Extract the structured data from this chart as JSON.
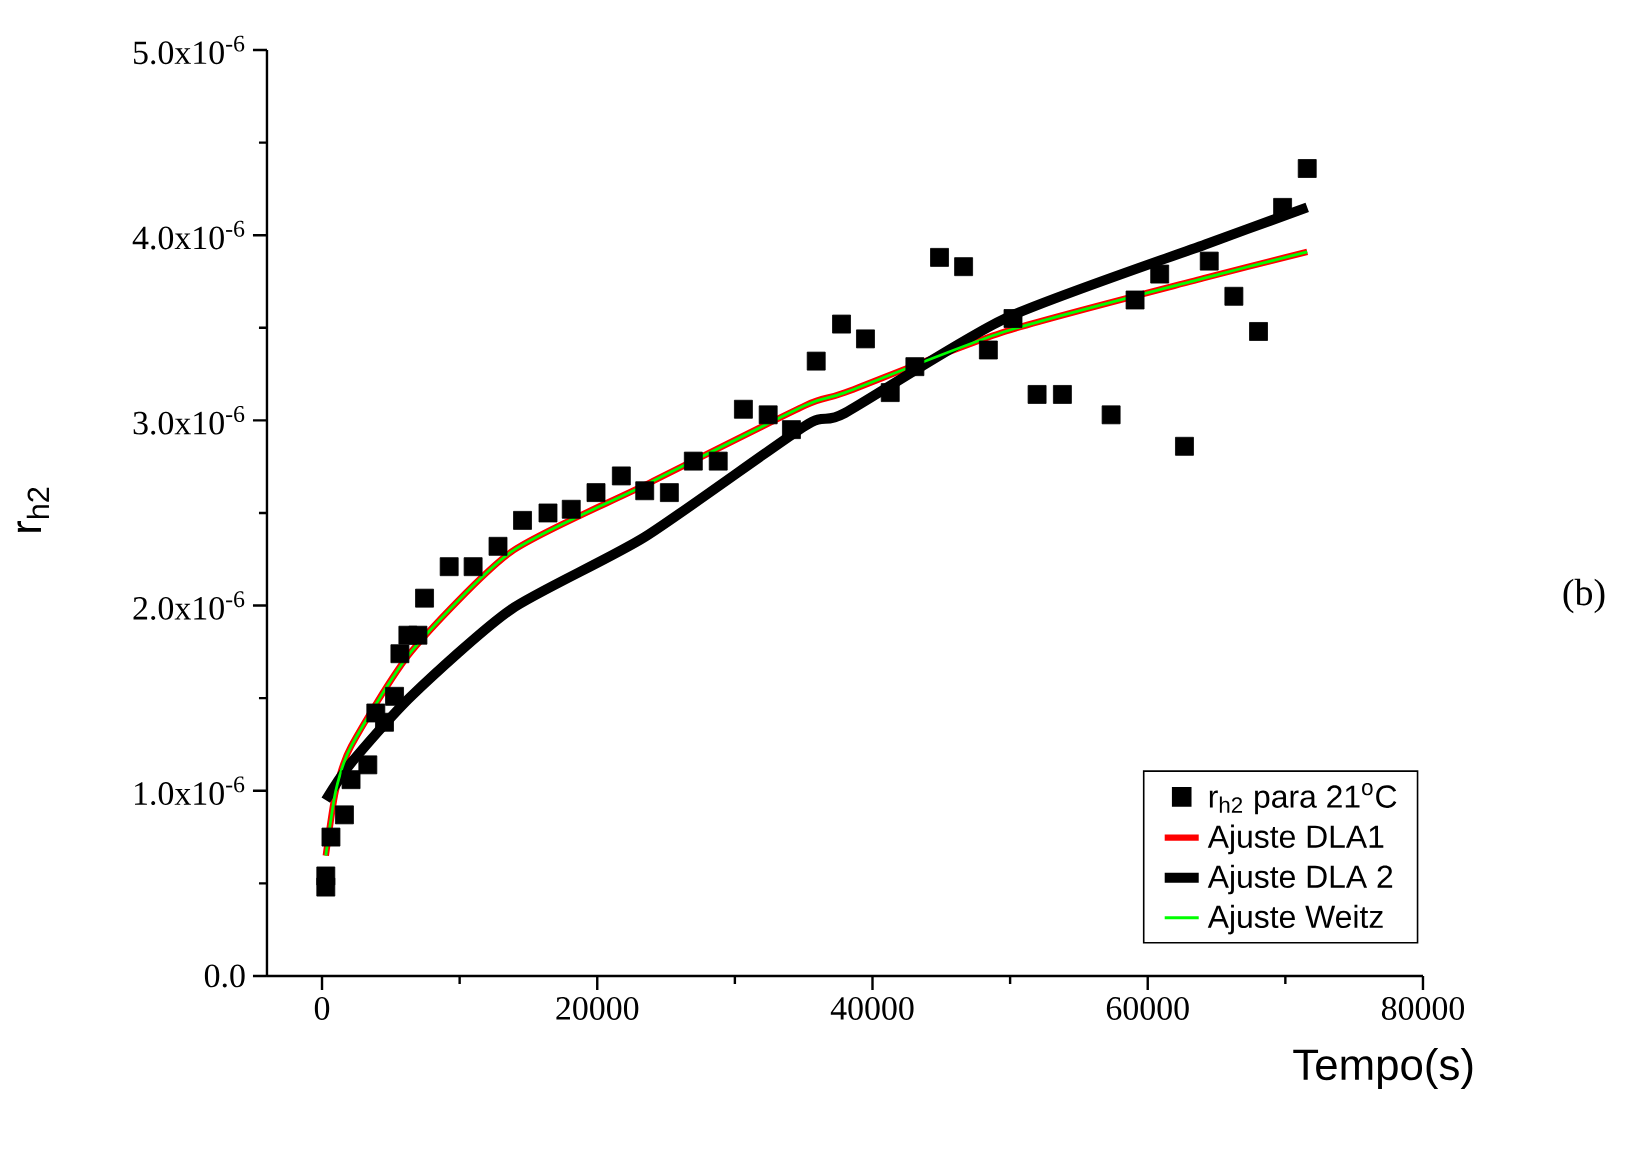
{
  "chart_data": {
    "type": "scatter",
    "xlabel": "Tempo(s)",
    "ylabel": "r$_{h2}$",
    "annotations": [
      "(b)"
    ],
    "xlim": [
      -4000,
      80000
    ],
    "xticks": [
      0,
      20000,
      40000,
      60000,
      80000
    ],
    "ylim": [
      0,
      5e-06
    ],
    "yticks": [
      {
        "value": 0,
        "label": "0.0"
      },
      {
        "value": 1e-06,
        "label": "1.0x10$^{-6}$"
      },
      {
        "value": 2e-06,
        "label": "2.0x10$^{-6}$"
      },
      {
        "value": 3e-06,
        "label": "3.0x10$^{-6}$"
      },
      {
        "value": 4e-06,
        "label": "4.0x10$^{-6}$"
      },
      {
        "value": 5e-06,
        "label": "5.0x10$^{-6}$"
      }
    ],
    "legend": "bottom right",
    "series": [
      {
        "name": "r$_{h2}$ para 21$^{o}$C",
        "marker": "square",
        "color": "#000000",
        "x": [
          276,
          276,
          650,
          1630,
          2110,
          3330,
          3910,
          4540,
          5270,
          5660,
          6240,
          6970,
          7450,
          9240,
          10980,
          12790,
          14570,
          16420,
          18110,
          19910,
          21750,
          23450,
          25240,
          26980,
          28790,
          30620,
          32420,
          34110,
          35910,
          37750,
          39490,
          41290,
          43080,
          44870,
          46620,
          48420,
          50210,
          51960,
          53800,
          57340,
          59080,
          60870,
          62670,
          64470,
          66260,
          68050,
          69800,
          71590
        ],
        "values": [
          5.4e-07,
          4.8e-07,
          7.5e-07,
          8.7e-07,
          1.06e-06,
          1.14e-06,
          1.42e-06,
          1.37e-06,
          1.51e-06,
          1.74e-06,
          1.84e-06,
          1.84e-06,
          2.04e-06,
          2.21e-06,
          2.21e-06,
          2.32e-06,
          2.46e-06,
          2.5e-06,
          2.52e-06,
          2.61e-06,
          2.7e-06,
          2.62e-06,
          2.61e-06,
          2.78e-06,
          2.78e-06,
          3.06e-06,
          3.03e-06,
          2.95e-06,
          3.32e-06,
          3.52e-06,
          3.44e-06,
          3.15e-06,
          3.29e-06,
          3.88e-06,
          3.83e-06,
          3.38e-06,
          3.55e-06,
          3.14e-06,
          3.14e-06,
          3.03e-06,
          3.65e-06,
          3.79e-06,
          2.86e-06,
          3.86e-06,
          3.67e-06,
          3.48e-06,
          4.15e-06,
          4.36e-06
        ]
      },
      {
        "name": "Ajuste DLA1",
        "type": "line",
        "marker": "none",
        "color": "#ff0000",
        "x": [
          276,
          1000,
          2110,
          6470,
          13750,
          23450,
          35090,
          38000,
          49640,
          64180,
          71590
        ],
        "values": [
          6.5e-07,
          1e-06,
          1.24e-06,
          1.75e-06,
          2.29e-06,
          2.65e-06,
          3.08e-06,
          3.15e-06,
          3.48e-06,
          3.77e-06,
          3.91e-06
        ]
      },
      {
        "name": "Ajuste DLA 2",
        "type": "line",
        "marker": "none",
        "color": "#000000",
        "x": [
          276,
          2110,
          6470,
          13750,
          23450,
          35090,
          38000,
          49640,
          64180,
          71590
        ],
        "values": [
          9.5e-07,
          1.15e-06,
          1.51e-06,
          1.98e-06,
          2.37e-06,
          2.97e-06,
          3.04e-06,
          3.55e-06,
          3.95e-06,
          4.15e-06
        ]
      },
      {
        "name": "Ajuste Weitz",
        "type": "line",
        "marker": "none",
        "color": "#00ff00",
        "x": [
          276,
          1000,
          2110,
          6470,
          13750,
          23450,
          35090,
          38000,
          49640,
          64180,
          71590
        ],
        "values": [
          6.5e-07,
          1e-06,
          1.24e-06,
          1.75e-06,
          2.29e-06,
          2.65e-06,
          3.08e-06,
          3.15e-06,
          3.48e-06,
          3.77e-06,
          3.91e-06
        ]
      }
    ]
  }
}
